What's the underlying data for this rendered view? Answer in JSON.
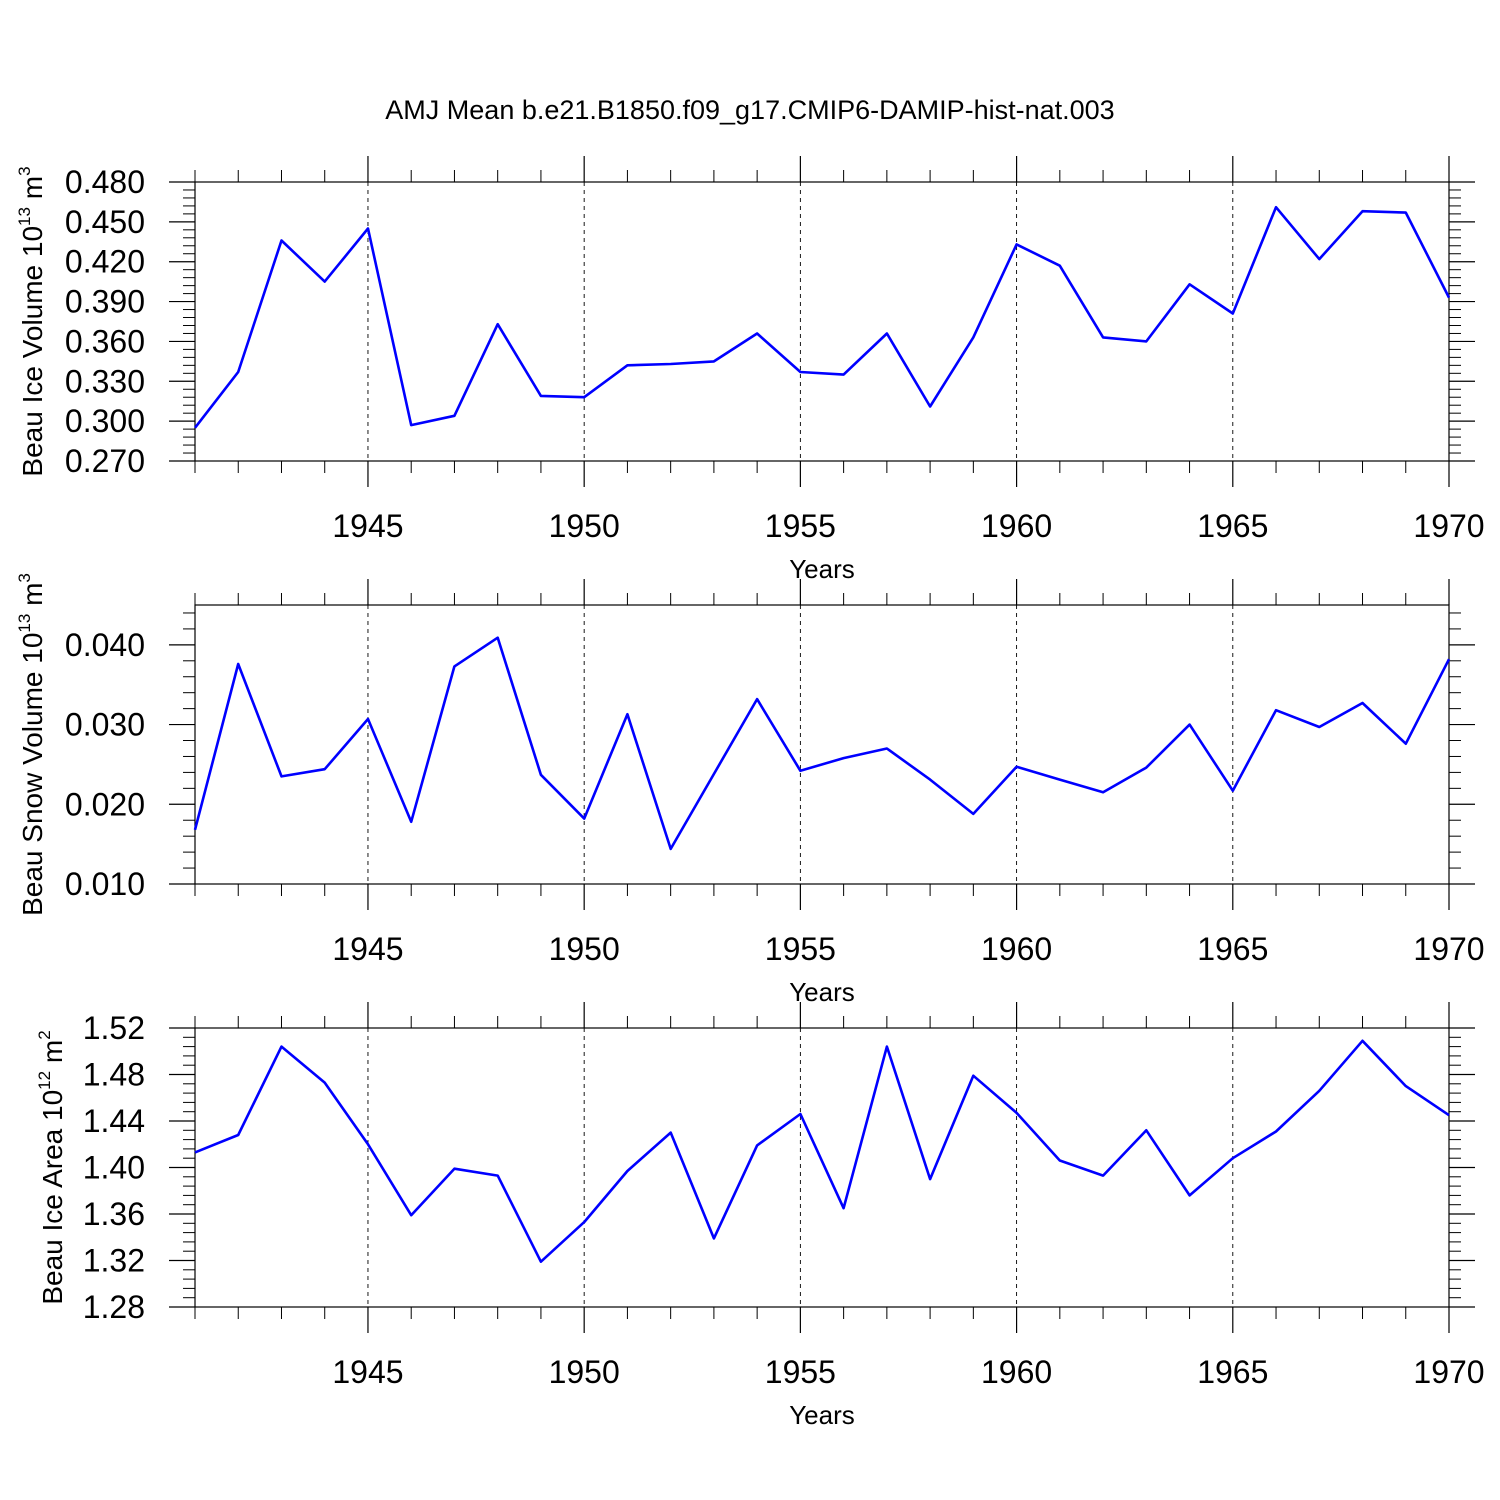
{
  "title": "AMJ Mean b.e21.B1850.f09_g17.CMIP6-DAMIP-hist-nat.003",
  "line_color": "#0000ff",
  "chart_data": [
    {
      "type": "line",
      "ylabel": "Beau Ice Volume",
      "ylabel_unit": {
        "base": "10",
        "exp": "13",
        "unit": "m",
        "unit_exp": "3"
      },
      "xlabel": "Years",
      "xlim": [
        1941,
        1970
      ],
      "ylim": [
        0.27,
        0.48
      ],
      "x_ticks": [
        1945,
        1950,
        1955,
        1960,
        1965,
        1970
      ],
      "x_tick_labels": [
        "1945",
        "1950",
        "1955",
        "1960",
        "1965",
        "1970"
      ],
      "y_ticks": [
        0.27,
        0.3,
        0.33,
        0.36,
        0.39,
        0.42,
        0.45,
        0.48
      ],
      "y_tick_labels": [
        "0.270",
        "0.300",
        "0.330",
        "0.360",
        "0.390",
        "0.420",
        "0.450",
        "0.480"
      ],
      "grid": "vertical dashed at major x ticks",
      "x": [
        1941,
        1942,
        1943,
        1944,
        1945,
        1946,
        1947,
        1948,
        1949,
        1950,
        1951,
        1952,
        1953,
        1954,
        1955,
        1956,
        1957,
        1958,
        1959,
        1960,
        1961,
        1962,
        1963,
        1964,
        1965,
        1966,
        1967,
        1968,
        1969,
        1970
      ],
      "values": [
        0.295,
        0.337,
        0.436,
        0.405,
        0.445,
        0.297,
        0.304,
        0.373,
        0.319,
        0.318,
        0.342,
        0.343,
        0.345,
        0.366,
        0.337,
        0.335,
        0.366,
        0.311,
        0.363,
        0.433,
        0.417,
        0.363,
        0.36,
        0.403,
        0.381,
        0.461,
        0.422,
        0.458,
        0.457,
        0.393
      ]
    },
    {
      "type": "line",
      "ylabel": "Beau Snow Volume",
      "ylabel_unit": {
        "base": "10",
        "exp": "13",
        "unit": "m",
        "unit_exp": "3"
      },
      "xlabel": "Years",
      "xlim": [
        1941,
        1970
      ],
      "ylim": [
        0.01,
        0.045
      ],
      "x_ticks": [
        1945,
        1950,
        1955,
        1960,
        1965,
        1970
      ],
      "x_tick_labels": [
        "1945",
        "1950",
        "1955",
        "1960",
        "1965",
        "1970"
      ],
      "y_ticks": [
        0.01,
        0.02,
        0.03,
        0.04
      ],
      "y_tick_labels": [
        "0.010",
        "0.020",
        "0.030",
        "0.040"
      ],
      "grid": "vertical dashed at major x ticks",
      "x": [
        1941,
        1942,
        1943,
        1944,
        1945,
        1946,
        1947,
        1948,
        1949,
        1950,
        1951,
        1952,
        1953,
        1954,
        1955,
        1956,
        1957,
        1958,
        1959,
        1960,
        1961,
        1962,
        1963,
        1964,
        1965,
        1966,
        1967,
        1968,
        1969,
        1970
      ],
      "values": [
        0.0168,
        0.0376,
        0.0235,
        0.0244,
        0.0307,
        0.0178,
        0.0373,
        0.0409,
        0.0237,
        0.0182,
        0.0313,
        0.0144,
        0.0238,
        0.0332,
        0.0242,
        0.0258,
        0.027,
        0.0231,
        0.0188,
        0.0247,
        0.0231,
        0.0215,
        0.0246,
        0.03,
        0.0217,
        0.0318,
        0.0297,
        0.0327,
        0.0276,
        0.0382
      ]
    },
    {
      "type": "line",
      "ylabel": "Beau Ice Area",
      "ylabel_unit": {
        "base": "10",
        "exp": "12",
        "unit": "m",
        "unit_exp": "2"
      },
      "xlabel": "Years",
      "xlim": [
        1941,
        1970
      ],
      "ylim": [
        1.28,
        1.52
      ],
      "x_ticks": [
        1945,
        1950,
        1955,
        1960,
        1965,
        1970
      ],
      "x_tick_labels": [
        "1945",
        "1950",
        "1955",
        "1960",
        "1965",
        "1970"
      ],
      "y_ticks": [
        1.28,
        1.32,
        1.36,
        1.4,
        1.44,
        1.48,
        1.52
      ],
      "y_tick_labels": [
        "1.28",
        "1.32",
        "1.36",
        "1.40",
        "1.44",
        "1.48",
        "1.52"
      ],
      "grid": "vertical dashed at major x ticks",
      "x": [
        1941,
        1942,
        1943,
        1944,
        1945,
        1946,
        1947,
        1948,
        1949,
        1950,
        1951,
        1952,
        1953,
        1954,
        1955,
        1956,
        1957,
        1958,
        1959,
        1960,
        1961,
        1962,
        1963,
        1964,
        1965,
        1966,
        1967,
        1968,
        1969,
        1970
      ],
      "values": [
        1.413,
        1.428,
        1.504,
        1.473,
        1.42,
        1.359,
        1.399,
        1.393,
        1.319,
        1.353,
        1.397,
        1.43,
        1.339,
        1.419,
        1.446,
        1.365,
        1.504,
        1.39,
        1.479,
        1.447,
        1.406,
        1.393,
        1.432,
        1.376,
        1.408,
        1.431,
        1.466,
        1.509,
        1.47,
        1.445
      ]
    }
  ]
}
